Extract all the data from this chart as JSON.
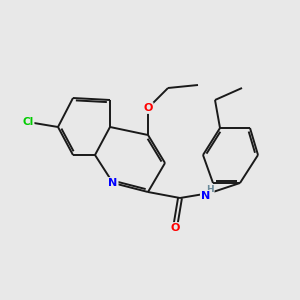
{
  "background_color": "#e8e8e8",
  "bond_color": "#1a1a1a",
  "bond_width": 1.4,
  "atom_colors": {
    "N": "#0000ff",
    "O": "#ff0000",
    "Cl": "#00cc00",
    "H": "#6a8a9a",
    "C": "#1a1a1a"
  },
  "font_size": 7.0,
  "figsize": [
    3.0,
    3.0
  ],
  "dpi": 100
}
